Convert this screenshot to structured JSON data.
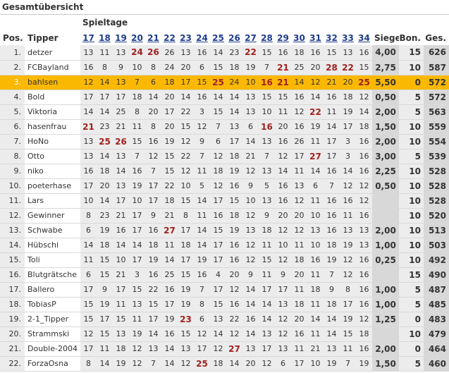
{
  "title": "Gesamtübersicht",
  "spieltage_label": "Spieltage",
  "headers": {
    "pos": "Pos.",
    "tipper": "Tipper",
    "siege": "Siege",
    "bon": "Bon.",
    "ges": "Ges."
  },
  "matchdays": [
    "17",
    "18",
    "19",
    "20",
    "21",
    "22",
    "23",
    "24",
    "25",
    "26",
    "27",
    "28",
    "29",
    "30",
    "31",
    "32",
    "33",
    "34"
  ],
  "highlight_row_color": "#fbb800",
  "highlight_value_color": "#a0211e",
  "rows": [
    {
      "pos": "1.",
      "name": "detzer",
      "pts": [
        "13",
        "11",
        "13",
        "24",
        "26",
        "26",
        "13",
        "16",
        "14",
        "23",
        "22",
        "15",
        "16",
        "18",
        "16",
        "15",
        "13",
        "16"
      ],
      "hi": [
        3,
        4,
        10
      ],
      "siege": "4,00",
      "bon": "15",
      "ges": "626"
    },
    {
      "pos": "2.",
      "name": "FCBayland",
      "pts": [
        "16",
        "8",
        "9",
        "10",
        "8",
        "24",
        "20",
        "6",
        "15",
        "18",
        "19",
        "7",
        "21",
        "25",
        "20",
        "28",
        "22",
        "15"
      ],
      "hi": [
        12,
        15,
        16
      ],
      "siege": "2,75",
      "bon": "10",
      "ges": "587"
    },
    {
      "pos": "3.",
      "name": "bahlsen",
      "pts": [
        "12",
        "14",
        "13",
        "7",
        "6",
        "18",
        "17",
        "15",
        "25",
        "24",
        "10",
        "16",
        "21",
        "14",
        "12",
        "21",
        "20",
        "25"
      ],
      "hi": [
        8,
        11,
        12,
        17
      ],
      "siege": "5,50",
      "bon": "0",
      "ges": "572",
      "highlight": true
    },
    {
      "pos": "4.",
      "name": "Bold",
      "pts": [
        "17",
        "17",
        "17",
        "18",
        "14",
        "20",
        "14",
        "16",
        "14",
        "14",
        "13",
        "15",
        "15",
        "16",
        "14",
        "16",
        "18",
        "12"
      ],
      "hi": [],
      "siege": "0,50",
      "bon": "5",
      "ges": "572"
    },
    {
      "pos": "5.",
      "name": "Viktoria",
      "pts": [
        "14",
        "14",
        "25",
        "8",
        "20",
        "17",
        "22",
        "3",
        "15",
        "14",
        "13",
        "10",
        "11",
        "12",
        "22",
        "11",
        "19",
        "14"
      ],
      "hi": [
        14
      ],
      "siege": "2,00",
      "bon": "5",
      "ges": "563"
    },
    {
      "pos": "6.",
      "name": "hasenfrau",
      "pts": [
        "21",
        "23",
        "21",
        "11",
        "8",
        "20",
        "15",
        "12",
        "7",
        "13",
        "6",
        "16",
        "20",
        "16",
        "19",
        "14",
        "17",
        "18"
      ],
      "hi": [
        0,
        11
      ],
      "siege": "1,50",
      "bon": "10",
      "ges": "559"
    },
    {
      "pos": "7.",
      "name": "HoNo",
      "pts": [
        "13",
        "25",
        "26",
        "15",
        "16",
        "19",
        "12",
        "9",
        "6",
        "17",
        "14",
        "13",
        "16",
        "26",
        "11",
        "17",
        "3",
        "16"
      ],
      "hi": [
        1,
        2
      ],
      "siege": "2,00",
      "bon": "10",
      "ges": "554"
    },
    {
      "pos": "8.",
      "name": "Otto",
      "pts": [
        "13",
        "14",
        "13",
        "7",
        "12",
        "15",
        "22",
        "7",
        "12",
        "18",
        "21",
        "7",
        "12",
        "17",
        "27",
        "17",
        "3",
        "16"
      ],
      "hi": [
        14
      ],
      "siege": "3,00",
      "bon": "5",
      "ges": "539"
    },
    {
      "pos": "9.",
      "name": "niko",
      "pts": [
        "16",
        "18",
        "14",
        "16",
        "7",
        "15",
        "12",
        "11",
        "18",
        "19",
        "12",
        "13",
        "14",
        "11",
        "14",
        "16",
        "14",
        "16"
      ],
      "hi": [],
      "siege": "2,25",
      "bon": "10",
      "ges": "528"
    },
    {
      "pos": "10.",
      "name": "poeterhase",
      "pts": [
        "17",
        "20",
        "13",
        "19",
        "17",
        "22",
        "10",
        "5",
        "12",
        "16",
        "9",
        "5",
        "16",
        "13",
        "6",
        "7",
        "12",
        "12"
      ],
      "hi": [],
      "siege": "0,50",
      "bon": "10",
      "ges": "528"
    },
    {
      "pos": "11.",
      "name": "Lars",
      "pts": [
        "10",
        "14",
        "17",
        "10",
        "17",
        "18",
        "15",
        "14",
        "17",
        "15",
        "10",
        "13",
        "16",
        "12",
        "11",
        "16",
        "16",
        "12"
      ],
      "hi": [],
      "siege": "",
      "bon": "10",
      "ges": "528"
    },
    {
      "pos": "12.",
      "name": "Gewinner",
      "pts": [
        "8",
        "23",
        "21",
        "17",
        "9",
        "21",
        "8",
        "11",
        "16",
        "18",
        "12",
        "9",
        "20",
        "20",
        "10",
        "16",
        "11",
        "16"
      ],
      "hi": [],
      "siege": "",
      "bon": "10",
      "ges": "520"
    },
    {
      "pos": "13.",
      "name": "Schwabe",
      "pts": [
        "6",
        "19",
        "16",
        "17",
        "16",
        "27",
        "17",
        "14",
        "15",
        "19",
        "13",
        "18",
        "12",
        "12",
        "13",
        "16",
        "13",
        "13"
      ],
      "hi": [
        5
      ],
      "siege": "2,00",
      "bon": "10",
      "ges": "513"
    },
    {
      "pos": "14.",
      "name": "Hübschi",
      "pts": [
        "14",
        "18",
        "14",
        "14",
        "18",
        "11",
        "18",
        "14",
        "17",
        "16",
        "12",
        "11",
        "10",
        "11",
        "10",
        "18",
        "19",
        "13"
      ],
      "hi": [],
      "siege": "1,00",
      "bon": "10",
      "ges": "503"
    },
    {
      "pos": "15.",
      "name": "Toli",
      "pts": [
        "11",
        "15",
        "10",
        "17",
        "19",
        "14",
        "17",
        "19",
        "17",
        "16",
        "12",
        "15",
        "12",
        "18",
        "16",
        "19",
        "12",
        "16"
      ],
      "hi": [],
      "siege": "0,25",
      "bon": "10",
      "ges": "492"
    },
    {
      "pos": "16.",
      "name": "Blutgrätsche",
      "pts": [
        "6",
        "15",
        "21",
        "3",
        "16",
        "25",
        "15",
        "16",
        "4",
        "20",
        "9",
        "11",
        "9",
        "20",
        "11",
        "7",
        "12",
        "16"
      ],
      "hi": [],
      "siege": "",
      "bon": "15",
      "ges": "490"
    },
    {
      "pos": "17.",
      "name": "Ballero",
      "pts": [
        "17",
        "9",
        "17",
        "15",
        "22",
        "16",
        "19",
        "7",
        "17",
        "12",
        "14",
        "17",
        "17",
        "11",
        "18",
        "9",
        "8",
        "16"
      ],
      "hi": [],
      "siege": "1,00",
      "bon": "5",
      "ges": "487"
    },
    {
      "pos": "18.",
      "name": "TobiasP",
      "pts": [
        "15",
        "19",
        "11",
        "13",
        "15",
        "17",
        "19",
        "8",
        "15",
        "16",
        "14",
        "14",
        "13",
        "18",
        "11",
        "18",
        "17",
        "16"
      ],
      "hi": [],
      "siege": "1,00",
      "bon": "5",
      "ges": "485"
    },
    {
      "pos": "19.",
      "name": "2-1_Tipper",
      "pts": [
        "15",
        "17",
        "15",
        "11",
        "17",
        "19",
        "23",
        "6",
        "13",
        "22",
        "16",
        "14",
        "12",
        "20",
        "14",
        "14",
        "19",
        "12"
      ],
      "hi": [
        6
      ],
      "siege": "1,25",
      "bon": "0",
      "ges": "483"
    },
    {
      "pos": "20.",
      "name": "Strammski",
      "pts": [
        "12",
        "15",
        "13",
        "19",
        "14",
        "16",
        "15",
        "12",
        "14",
        "12",
        "14",
        "13",
        "12",
        "16",
        "11",
        "14",
        "15",
        "18"
      ],
      "hi": [],
      "siege": "",
      "bon": "10",
      "ges": "479"
    },
    {
      "pos": "21.",
      "name": "Double-2004",
      "pts": [
        "17",
        "11",
        "18",
        "12",
        "13",
        "14",
        "13",
        "17",
        "12",
        "27",
        "13",
        "17",
        "13",
        "11",
        "21",
        "13",
        "11",
        "16"
      ],
      "hi": [
        9
      ],
      "siege": "2,00",
      "bon": "0",
      "ges": "464"
    },
    {
      "pos": "22.",
      "name": "ForzaOsna",
      "pts": [
        "8",
        "14",
        "19",
        "12",
        "7",
        "14",
        "12",
        "25",
        "18",
        "14",
        "20",
        "12",
        "6",
        "17",
        "10",
        "19",
        "7",
        "19"
      ],
      "hi": [
        7
      ],
      "siege": "1,50",
      "bon": "5",
      "ges": "460"
    }
  ]
}
